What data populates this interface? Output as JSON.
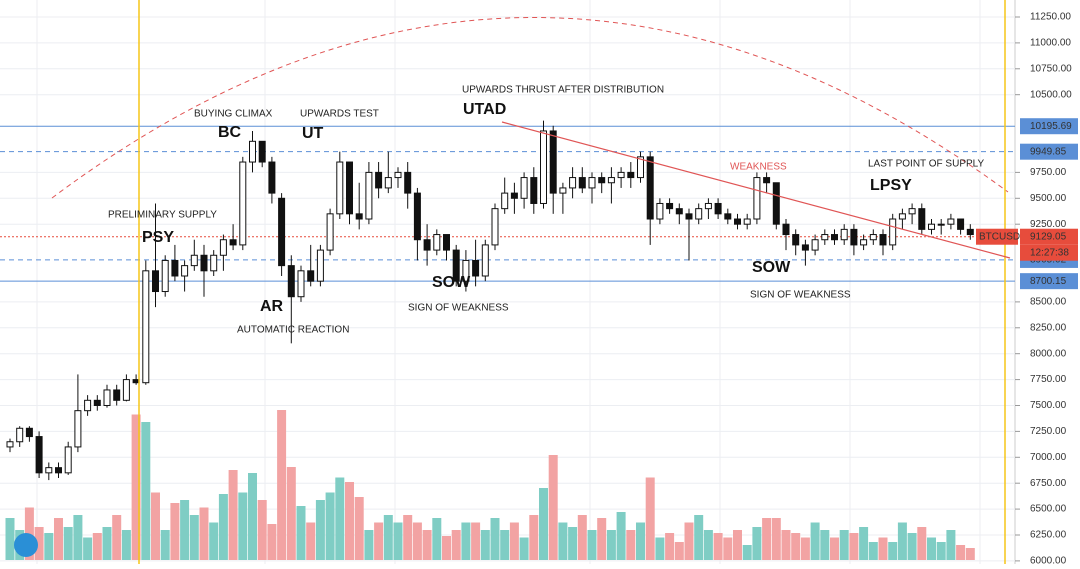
{
  "chart_data": {
    "type": "candlestick",
    "ylim": [
      5970,
      11414
    ],
    "yticks": [
      {
        "value": 11250,
        "label": "11250.00"
      },
      {
        "value": 11000,
        "label": "11000.00"
      },
      {
        "value": 10750,
        "label": "10750.00"
      },
      {
        "value": 10500,
        "label": "10500.00"
      },
      {
        "value": 9750,
        "label": "9750.00"
      },
      {
        "value": 9500,
        "label": "9500.00"
      },
      {
        "value": 9250,
        "label": "9250.00"
      },
      {
        "value": 8500,
        "label": "8500.00"
      },
      {
        "value": 8250,
        "label": "8250.00"
      },
      {
        "value": 8000,
        "label": "8000.00"
      },
      {
        "value": 7750,
        "label": "7750.00"
      },
      {
        "value": 7500,
        "label": "7500.00"
      },
      {
        "value": 7250,
        "label": "7250.00"
      },
      {
        "value": 7000,
        "label": "7000.00"
      },
      {
        "value": 6750,
        "label": "6750.00"
      },
      {
        "value": 6500,
        "label": "6500.00"
      },
      {
        "value": 6250,
        "label": "6250.00"
      },
      {
        "value": 6000,
        "label": "6000.00"
      }
    ],
    "grid": true,
    "up_color": "#ffffff",
    "down_color": "#111111",
    "volume_up_color": "#7fcdc4",
    "volume_down_color": "#f2a3a3",
    "open": [
      7100,
      7150,
      7280,
      7200,
      6850,
      6900,
      6850,
      7100,
      7450,
      7550,
      7500,
      7650,
      7550,
      7750,
      7720,
      8800,
      8600,
      8900,
      8750,
      8850,
      8950,
      8800,
      8950,
      9100,
      9050,
      9850,
      10050,
      9850,
      9500,
      8850,
      8550,
      8800,
      8700,
      9000,
      9350,
      9850,
      9350,
      9300,
      9750,
      9600,
      9700,
      9750,
      9550,
      9100,
      9000,
      9150,
      9000,
      8700,
      8900,
      8750,
      9050,
      9400,
      9550,
      9500,
      9700,
      9450,
      10150,
      9550,
      9600,
      9700,
      9600,
      9700,
      9650,
      9700,
      9750,
      9700,
      9900,
      9300,
      9450,
      9400,
      9350,
      9300,
      9400,
      9450,
      9350,
      9300,
      9250,
      9300,
      9700,
      9650,
      9250,
      9150,
      9050,
      9000,
      9100,
      9150,
      9100,
      9200,
      9050,
      9100,
      9150,
      9050,
      9300,
      9350,
      9400,
      9200,
      9250,
      9250,
      9300,
      9200
    ],
    "high": [
      7180,
      7300,
      7300,
      7250,
      6950,
      6950,
      7150,
      7800,
      7600,
      7600,
      7700,
      7700,
      7800,
      7800,
      8900,
      9450,
      8950,
      9050,
      8900,
      9100,
      9050,
      9000,
      9150,
      9250,
      9900,
      10150,
      10050,
      9900,
      9550,
      8950,
      8850,
      9050,
      9050,
      9400,
      9950,
      9850,
      9650,
      9850,
      9850,
      9950,
      9800,
      9850,
      9600,
      9250,
      9200,
      9150,
      9050,
      9000,
      9100,
      9100,
      9450,
      9700,
      9650,
      9750,
      9800,
      10250,
      10200,
      9650,
      9800,
      9800,
      9750,
      9750,
      9800,
      9800,
      9850,
      9950,
      9950,
      9500,
      9500,
      9450,
      9400,
      9450,
      9500,
      9500,
      9400,
      9350,
      9350,
      9750,
      9750,
      9650,
      9300,
      9200,
      9100,
      9150,
      9200,
      9200,
      9250,
      9250,
      9150,
      9200,
      9200,
      9350,
      9400,
      9450,
      9450,
      9300,
      9300,
      9350,
      9300,
      9250
    ],
    "low": [
      7050,
      7100,
      7150,
      6800,
      6780,
      6800,
      6830,
      7050,
      7400,
      7450,
      7480,
      7500,
      7540,
      7700,
      7700,
      8450,
      8550,
      8700,
      8600,
      8800,
      8550,
      8750,
      8800,
      9000,
      9000,
      9750,
      9800,
      9450,
      8750,
      8100,
      8500,
      8650,
      8650,
      8950,
      9300,
      9250,
      9200,
      9250,
      9500,
      9550,
      9600,
      9400,
      8900,
      8850,
      8950,
      8900,
      8650,
      8600,
      8650,
      8700,
      9000,
      9350,
      9350,
      9400,
      9350,
      9400,
      9350,
      9350,
      9500,
      9550,
      9450,
      9550,
      9450,
      9600,
      9600,
      9650,
      9050,
      9250,
      9350,
      9250,
      8900,
      9250,
      9300,
      9300,
      9250,
      9200,
      9200,
      9250,
      9550,
      9200,
      9000,
      8950,
      8850,
      8950,
      9050,
      9050,
      9050,
      8950,
      9000,
      9050,
      8950,
      9000,
      9200,
      9250,
      9150,
      9150,
      9150,
      9200,
      9150,
      9100
    ],
    "close": [
      7150,
      7280,
      7200,
      6850,
      6900,
      6850,
      7100,
      7450,
      7550,
      7500,
      7650,
      7550,
      7750,
      7720,
      8800,
      8600,
      8900,
      8750,
      8850,
      8950,
      8800,
      8950,
      9100,
      9050,
      9850,
      10050,
      9850,
      9550,
      8850,
      8550,
      8800,
      8700,
      9000,
      9350,
      9850,
      9350,
      9300,
      9750,
      9600,
      9700,
      9750,
      9550,
      9100,
      9000,
      9150,
      9000,
      8700,
      8900,
      8750,
      9050,
      9400,
      9550,
      9500,
      9700,
      9450,
      10150,
      9550,
      9600,
      9700,
      9600,
      9700,
      9650,
      9700,
      9750,
      9700,
      9900,
      9300,
      9450,
      9400,
      9350,
      9300,
      9400,
      9450,
      9350,
      9300,
      9250,
      9300,
      9700,
      9650,
      9250,
      9150,
      9050,
      9000,
      9100,
      9150,
      9100,
      9200,
      9050,
      9100,
      9150,
      9050,
      9300,
      9350,
      9400,
      9200,
      9250,
      9250,
      9300,
      9200,
      9150
    ],
    "volume": [
      28,
      20,
      35,
      22,
      18,
      28,
      22,
      30,
      15,
      18,
      22,
      30,
      20,
      97,
      92,
      45,
      20,
      38,
      40,
      30,
      35,
      25,
      44,
      60,
      45,
      58,
      40,
      24,
      100,
      62,
      36,
      25,
      40,
      45,
      55,
      52,
      42,
      20,
      25,
      30,
      25,
      30,
      25,
      20,
      28,
      16,
      20,
      25,
      25,
      20,
      28,
      20,
      25,
      15,
      30,
      48,
      70,
      25,
      22,
      30,
      20,
      28,
      20,
      32,
      20,
      25,
      55,
      15,
      18,
      12,
      25,
      30,
      20,
      18,
      15,
      20,
      10,
      22,
      28,
      28,
      20,
      18,
      15,
      25,
      20,
      15,
      20,
      18,
      22,
      12,
      15,
      12,
      25,
      18,
      22,
      15,
      12,
      20,
      10,
      8
    ],
    "price_lines": [
      {
        "value": 10195.69,
        "color": "#5b8fd6",
        "style": "solid"
      },
      {
        "value": 9949.85,
        "color": "#5b8fd6",
        "style": "dashed"
      },
      {
        "value": 9129.05,
        "color": "#e74c3c",
        "style": "dotted"
      },
      {
        "value": 8905.02,
        "color": "#5b8fd6",
        "style": "dashed"
      },
      {
        "value": 8700.15,
        "color": "#5b8fd6",
        "style": "solid"
      }
    ],
    "symbol": "BTCUSD",
    "countdown": "12:27:38",
    "annotations": [
      "PRELIMINARY SUPPLY",
      "PSY",
      "BUYING CLIMAX",
      "BC",
      "UPWARDS TEST",
      "UT",
      "UPWARDS THRUST AFTER DISTRIBUTION",
      "UTAD",
      "AR",
      "AUTOMATIC REACTION",
      "SOW",
      "SIGN OF WEAKNESS",
      "WEAKNESS",
      "LAST POINT OF SUPPLY",
      "LPSY",
      "SOW",
      "SIGN OF WEAKNESS"
    ]
  }
}
